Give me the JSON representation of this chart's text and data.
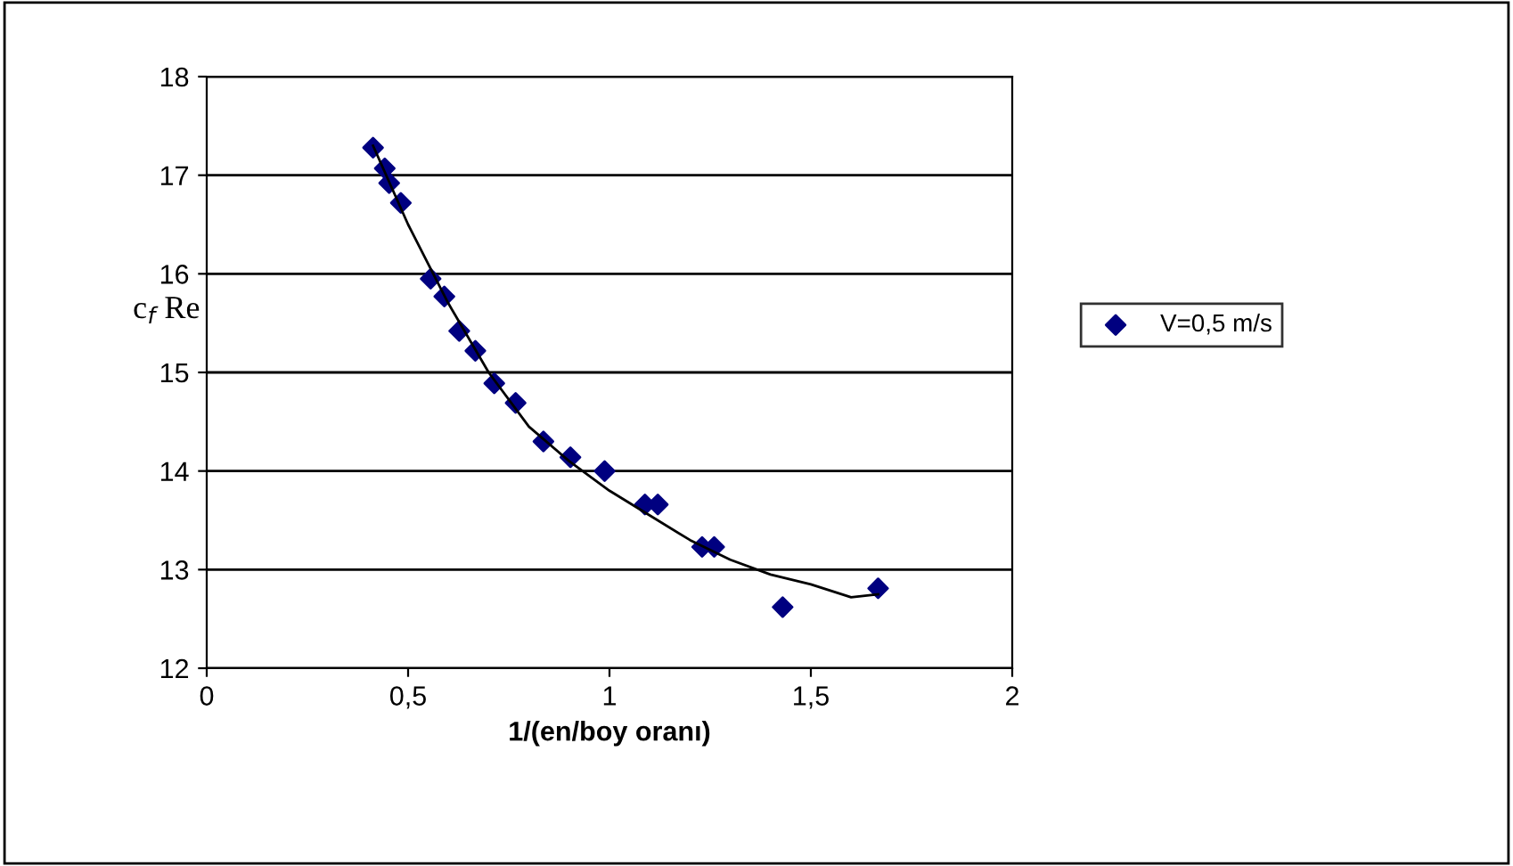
{
  "chart_data": {
    "type": "scatter",
    "xlabel": "1/(en/boy oranı)",
    "ylabel": "c$_{f}$ Re",
    "xlim": [
      0,
      2
    ],
    "xticks": [
      0,
      {
        "value": 0.5,
        "label": "0,5"
      },
      1,
      {
        "value": 1.5,
        "label": "1,5"
      },
      2
    ],
    "ylim": [
      12,
      18
    ],
    "yticks": [
      12,
      13,
      14,
      15,
      16,
      17,
      18
    ],
    "grid": "y",
    "legend": "right",
    "marker": "diamond",
    "series": [
      {
        "name": "V=0,5 m/s",
        "color": "#000080",
        "x": [
          0.413,
          0.442,
          0.453,
          0.482,
          0.556,
          0.59,
          0.627,
          0.667,
          0.714,
          0.767,
          0.836,
          0.903,
          0.988,
          1.088,
          1.12,
          1.23,
          1.26,
          1.43,
          1.667
        ],
        "values": [
          17.28,
          17.07,
          16.92,
          16.72,
          15.95,
          15.77,
          15.42,
          15.22,
          14.89,
          14.69,
          14.3,
          14.14,
          14.0,
          13.66,
          13.66,
          13.23,
          13.23,
          12.62,
          12.81
        ]
      },
      {
        "type": "line",
        "color": "#000000",
        "marker": "none",
        "x": [
          0.413,
          0.5,
          0.6,
          0.7,
          0.8,
          0.9,
          1.0,
          1.1,
          1.2,
          1.3,
          1.4,
          1.5,
          1.6,
          1.667
        ],
        "values": [
          17.3,
          16.5,
          15.7,
          15.0,
          14.45,
          14.1,
          13.8,
          13.55,
          13.3,
          13.1,
          12.95,
          12.85,
          12.72,
          12.75
        ]
      }
    ]
  }
}
